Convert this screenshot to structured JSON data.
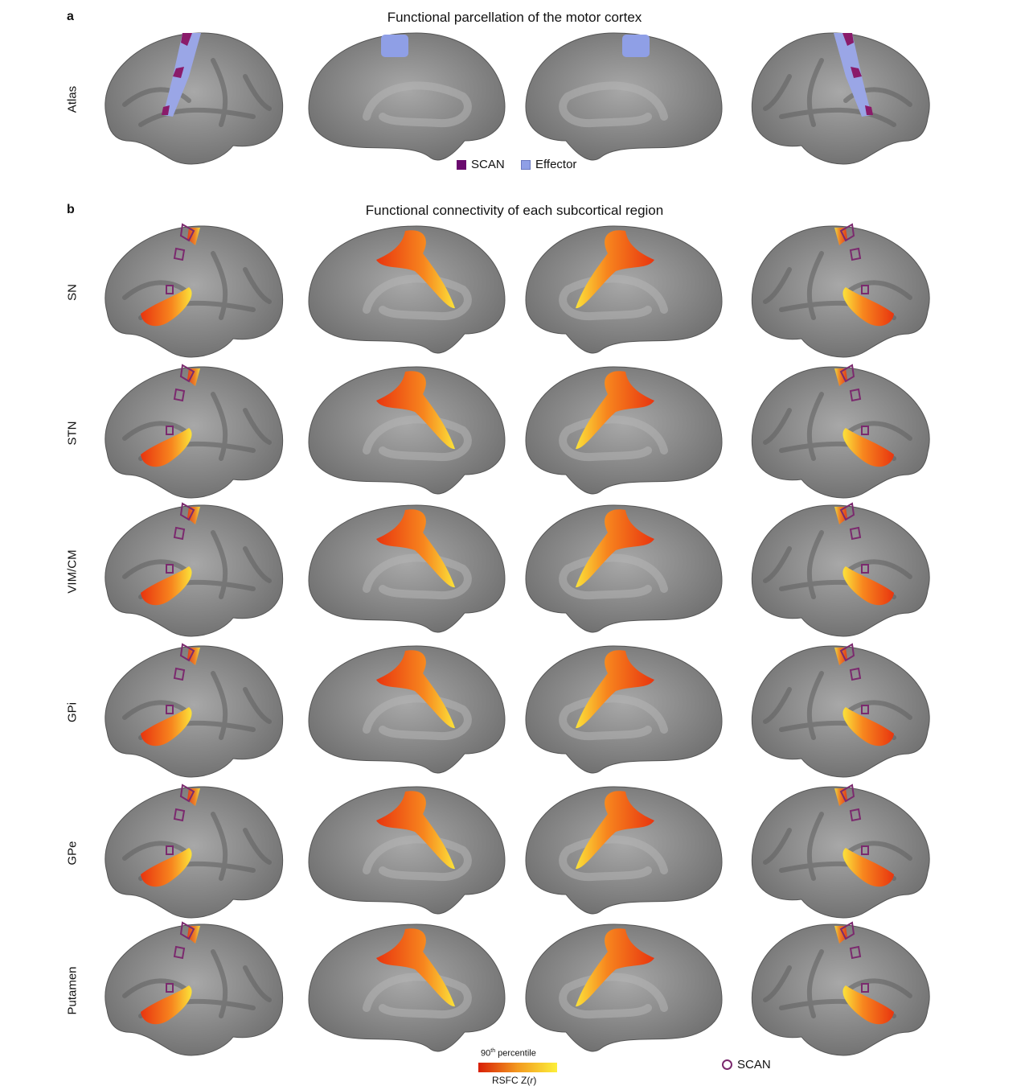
{
  "panel_a": {
    "letter": "a",
    "title": "Functional parcellation of the motor cortex",
    "row_label": "Atlas",
    "legend": [
      {
        "label": "SCAN",
        "color": "#6a0a6e"
      },
      {
        "label": "Effector",
        "color": "#8f9fe6"
      }
    ]
  },
  "panel_b": {
    "letter": "b",
    "title": "Functional connectivity of each subcortical region",
    "rows": [
      "SN",
      "STN",
      "VIM/CM",
      "GPi",
      "GPe",
      "Putamen"
    ]
  },
  "colorbar": {
    "top_label_num": "90",
    "top_label_sup": "th",
    "top_label_rest": " percentile",
    "bottom_label_pre": "RSFC Z(",
    "bottom_label_italic": "r",
    "bottom_label_post": ")",
    "colors": [
      "#d81e05",
      "#f39a1f",
      "#fcef3a"
    ]
  },
  "scan_legend": {
    "label": "SCAN",
    "color": "#7b2a6e"
  },
  "colors": {
    "cortex": "#8a8a8a",
    "scan": "#8a1b6a",
    "effector": "#9aa6e6"
  }
}
